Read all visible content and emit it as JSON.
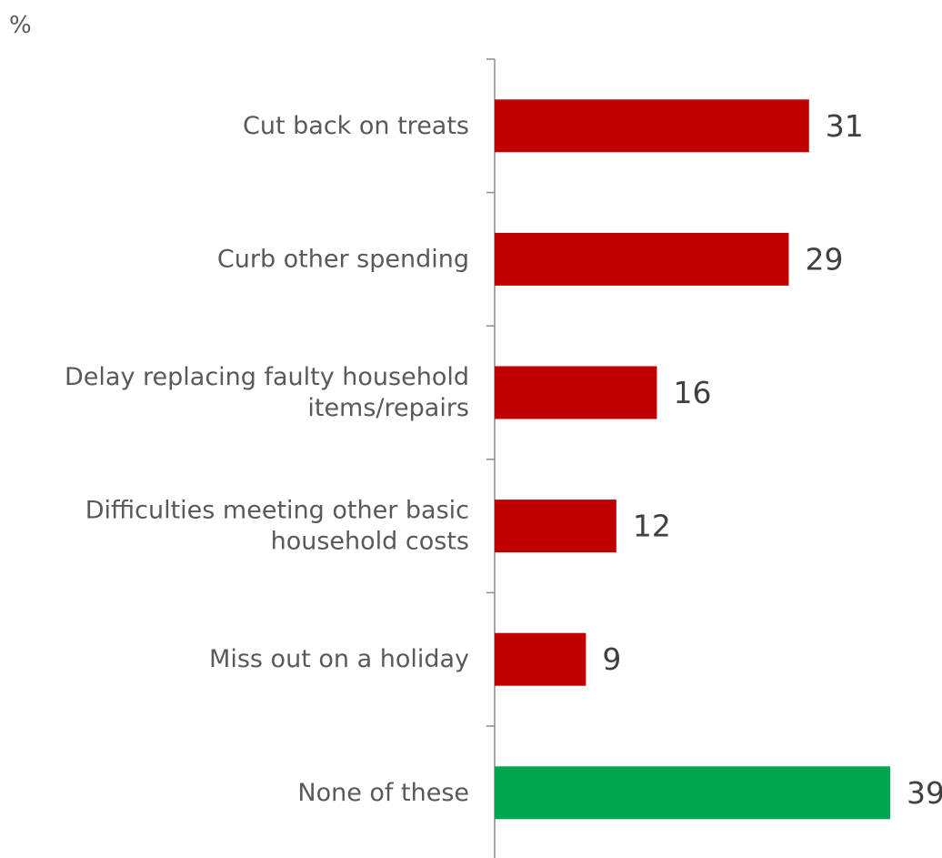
{
  "chart_data": {
    "type": "bar",
    "orientation": "horizontal",
    "unit_label": "%",
    "categories": [
      [
        "Cut back on treats"
      ],
      [
        "Curb other spending"
      ],
      [
        "Delay replacing faulty household",
        "items/repairs"
      ],
      [
        "Difficulties meeting other basic",
        "household costs"
      ],
      [
        "Miss out on a holiday"
      ],
      [
        "None of these"
      ]
    ],
    "values": [
      31,
      29,
      16,
      12,
      9,
      39
    ],
    "bar_colors": [
      "#c00000",
      "#c00000",
      "#c00000",
      "#c00000",
      "#c00000",
      "#00a64f"
    ],
    "xlim": [
      0,
      39
    ],
    "grid": false,
    "legend": "none"
  }
}
